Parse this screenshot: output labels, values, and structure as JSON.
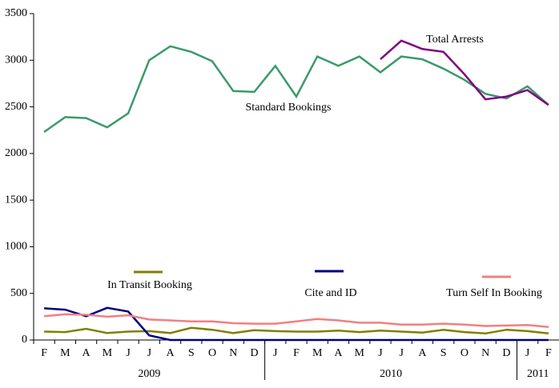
{
  "chart_data": {
    "type": "line",
    "categories": [
      "F",
      "M",
      "A",
      "M",
      "J",
      "J",
      "A",
      "S",
      "O",
      "N",
      "D",
      "J",
      "F",
      "M",
      "A",
      "M",
      "J",
      "J",
      "A",
      "S",
      "O",
      "N",
      "D",
      "J",
      "F"
    ],
    "year_labels": [
      "2009",
      "2010",
      "2011"
    ],
    "ylim": [
      0,
      3500
    ],
    "yticks": [
      0,
      500,
      1000,
      1500,
      2000,
      2500,
      3000,
      3500
    ],
    "series": [
      {
        "name": "Standard Bookings",
        "color": "#3a9a6a",
        "values": [
          2230,
          2390,
          2380,
          2280,
          2430,
          3000,
          3150,
          3090,
          2990,
          2670,
          2660,
          2940,
          2610,
          3040,
          2940,
          3040,
          2870,
          3040,
          3010,
          2910,
          2790,
          2640,
          2590,
          2720,
          2520
        ]
      },
      {
        "name": "Total Arrests",
        "color": "#800080",
        "values": [
          null,
          null,
          null,
          null,
          null,
          null,
          null,
          null,
          null,
          null,
          null,
          null,
          null,
          null,
          null,
          null,
          3010,
          3210,
          3120,
          3090,
          2850,
          2580,
          2610,
          2680,
          2520
        ]
      },
      {
        "name": "In Transit Booking",
        "color": "#808000",
        "values": [
          90,
          85,
          120,
          75,
          90,
          95,
          75,
          130,
          110,
          75,
          105,
          95,
          90,
          90,
          100,
          85,
          100,
          90,
          80,
          110,
          85,
          70,
          110,
          95,
          70
        ]
      },
      {
        "name": "Cite and ID",
        "color": "#000080",
        "values": [
          340,
          325,
          255,
          345,
          305,
          50,
          0,
          0,
          0,
          0,
          0,
          0,
          0,
          0,
          0,
          0,
          0,
          0,
          0,
          0,
          0,
          0,
          0,
          0,
          0
        ]
      },
      {
        "name": "Turn Self In Booking",
        "color": "#f08080",
        "values": [
          255,
          275,
          270,
          250,
          265,
          220,
          210,
          200,
          200,
          180,
          175,
          175,
          200,
          225,
          210,
          185,
          185,
          165,
          165,
          175,
          165,
          150,
          155,
          160,
          140
        ]
      }
    ]
  }
}
